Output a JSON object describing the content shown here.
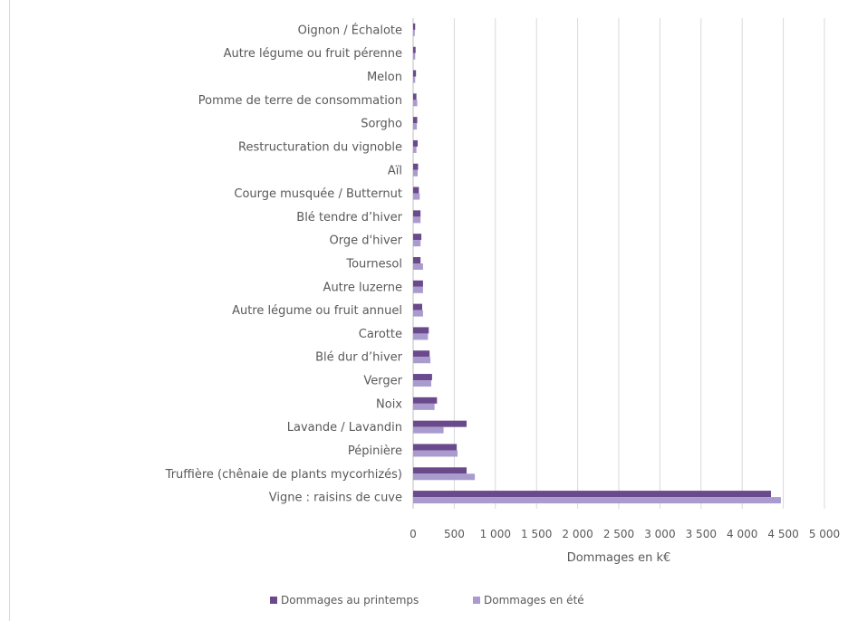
{
  "chart_data": {
    "type": "bar",
    "orientation": "horizontal",
    "xlabel": "Dommages en k€",
    "xlim": [
      0,
      5000
    ],
    "xticks": [
      0,
      500,
      1000,
      1500,
      2000,
      2500,
      3000,
      3500,
      4000,
      4500,
      5000
    ],
    "xtick_labels": [
      "0",
      "500",
      "1 000",
      "1 500",
      "2 000",
      "2 500",
      "3 000",
      "3 500",
      "4 000",
      "4 500",
      "5 000"
    ],
    "grid": "vertical",
    "legend_position": "bottom",
    "categories": [
      "Oignon / Échalote",
      "Autre légume ou fruit pérenne",
      "Melon",
      "Pomme de terre de consommation",
      "Sorgho",
      "Restructuration du vignoble",
      "Aïl",
      "Courge musquée / Butternut",
      "Blé tendre d’hiver",
      "Orge d'hiver",
      "Tournesol",
      "Autre luzerne",
      "Autre légume ou fruit annuel",
      "Carotte",
      "Blé dur d’hiver",
      "Verger",
      "Noix",
      "Lavande / Lavandin",
      "Pépinière",
      "Truffière (chênaie de plants mycorhizés)",
      "Vigne : raisins de cuve"
    ],
    "series": [
      {
        "name": "Dommages au printemps",
        "color": "#6a4a8c",
        "values": [
          25,
          30,
          35,
          40,
          50,
          55,
          60,
          70,
          90,
          100,
          90,
          120,
          110,
          190,
          200,
          230,
          290,
          650,
          530,
          650,
          4350
        ]
      },
      {
        "name": "Dommages en été",
        "color": "#a99bcd",
        "values": [
          20,
          25,
          25,
          50,
          45,
          40,
          55,
          80,
          90,
          90,
          120,
          120,
          120,
          180,
          210,
          220,
          260,
          370,
          540,
          750,
          4470
        ]
      }
    ]
  }
}
